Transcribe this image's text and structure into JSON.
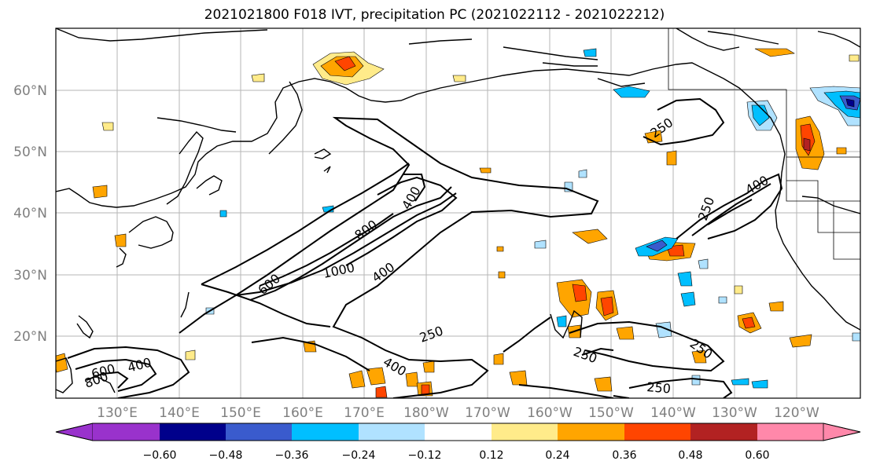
{
  "title": "2021021800 F018 IVT, precipitation PC (2021022112 - 2021022212)",
  "lat_labels": [
    "60°N",
    "50°N",
    "40°N",
    "30°N",
    "20°N"
  ],
  "lon_labels": [
    "130°E",
    "140°E",
    "150°E",
    "160°E",
    "170°E",
    "180°W",
    "170°W",
    "160°W",
    "150°W",
    "140°W",
    "130°W",
    "120°W"
  ],
  "contour_labels": [
    "250",
    "250",
    "250",
    "250",
    "250",
    "250",
    "400",
    "400",
    "400",
    "400",
    "400",
    "600",
    "600",
    "800",
    "800",
    "1000"
  ],
  "colorbar": {
    "tick_labels": [
      "−0.60",
      "−0.48",
      "−0.36",
      "−0.24",
      "−0.12",
      "0.12",
      "0.24",
      "0.36",
      "0.48",
      "0.60"
    ],
    "colors": [
      "#9932cc",
      "#00008b",
      "#3a5bcd",
      "#00bfff",
      "#b0e2ff",
      "#ffffff",
      "#ffeb8a",
      "#ffa500",
      "#ff4500",
      "#b22222",
      "#ff88aa"
    ]
  }
}
